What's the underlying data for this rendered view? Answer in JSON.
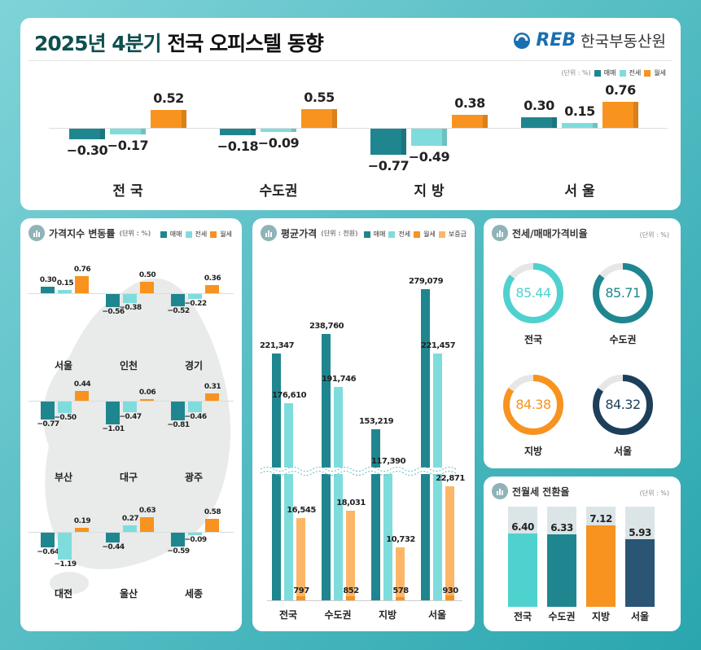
{
  "header": {
    "title_accent": "2025년 4분기",
    "title_rest": "전국 오피스텔 동향",
    "logo_text": "REB",
    "org": "한국부동산원",
    "unit": "(단위 : %)",
    "legend": [
      "매매",
      "전세",
      "월세"
    ]
  },
  "colors": {
    "sale": "#1f8690",
    "jeonse": "#7fdcdc",
    "wolse": "#f7931e",
    "deposit": "#fdb667",
    "navy": "#1e3f5a",
    "gray": "#e6e6e6"
  },
  "chart_data": [
    {
      "type": "bar",
      "title": "",
      "categories": [
        "전 국",
        "수도권",
        "지 방",
        "서 울"
      ],
      "series": [
        {
          "name": "매매",
          "values": [
            -0.3,
            -0.18,
            -0.77,
            0.3
          ]
        },
        {
          "name": "전세",
          "values": [
            -0.17,
            -0.09,
            -0.49,
            0.15
          ]
        },
        {
          "name": "월세",
          "values": [
            0.52,
            0.55,
            0.38,
            0.76
          ]
        }
      ]
    },
    {
      "type": "bar",
      "title": "가격지수 변동률",
      "unit": "(단위 : %)",
      "legend": [
        "매매",
        "전세",
        "월세"
      ],
      "categories": [
        "서울",
        "인천",
        "경기",
        "부산",
        "대구",
        "광주",
        "대전",
        "울산",
        "세종"
      ],
      "series": [
        {
          "name": "매매",
          "values": [
            0.3,
            -0.56,
            -0.52,
            -0.77,
            -1.01,
            -0.81,
            -0.64,
            -0.44,
            -0.59
          ]
        },
        {
          "name": "전세",
          "values": [
            0.15,
            -0.38,
            -0.22,
            -0.5,
            -0.47,
            -0.46,
            -1.19,
            0.27,
            -0.09
          ]
        },
        {
          "name": "월세",
          "values": [
            0.76,
            0.5,
            0.36,
            0.44,
            0.06,
            0.31,
            0.19,
            0.63,
            0.58
          ]
        }
      ]
    },
    {
      "type": "bar",
      "title": "평균가격",
      "unit": "(단위 : 천원)",
      "legend": [
        "매매",
        "전세",
        "월세",
        "보증금"
      ],
      "axis_break": true,
      "categories": [
        "전국",
        "수도권",
        "지방",
        "서울"
      ],
      "series": [
        {
          "name": "매매",
          "values": [
            221347,
            238760,
            153219,
            279079
          ]
        },
        {
          "name": "전세",
          "values": [
            176610,
            191746,
            117390,
            221457
          ]
        },
        {
          "name": "월세",
          "values": [
            797,
            852,
            578,
            930
          ]
        },
        {
          "name": "보증금",
          "values": [
            16545,
            18031,
            10732,
            22871
          ]
        }
      ]
    },
    {
      "type": "pie",
      "title": "전세/매매가격비율",
      "unit": "(단위 : %)",
      "categories": [
        "전국",
        "수도권",
        "지방",
        "서울"
      ],
      "values": [
        85.44,
        85.71,
        84.38,
        84.32
      ],
      "colors": [
        "#4fd1cf",
        "#1f8690",
        "#f7931e",
        "#1e3f5a"
      ]
    },
    {
      "type": "bar",
      "title": "전월세 전환율",
      "unit": "(단위 : %)",
      "categories": [
        "전국",
        "수도권",
        "지방",
        "서울"
      ],
      "values": [
        6.4,
        6.33,
        7.12,
        5.93
      ],
      "colors": [
        "#4fd1cf",
        "#1f8690",
        "#f7931e",
        "#2a5575"
      ]
    }
  ]
}
